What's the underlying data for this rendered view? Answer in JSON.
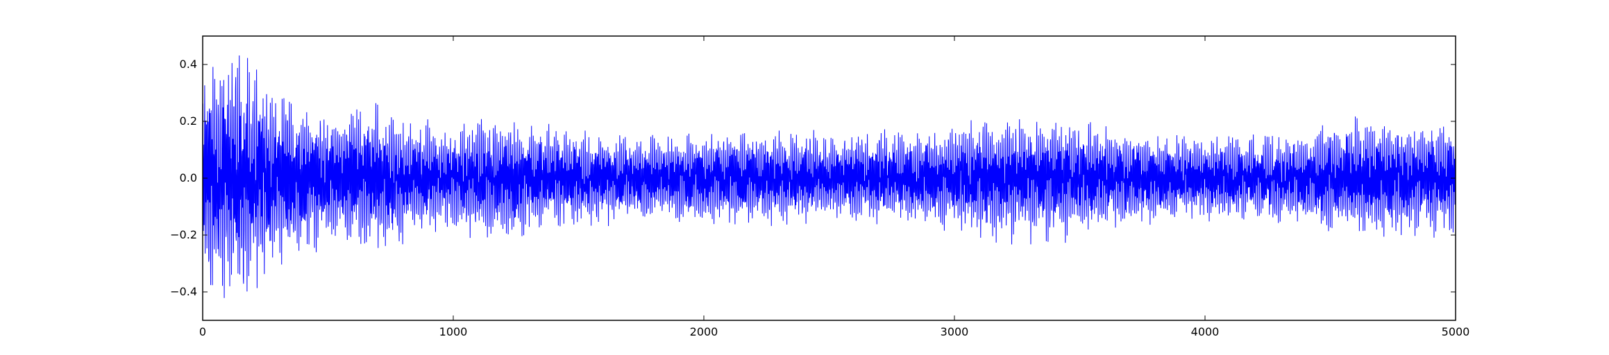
{
  "chart_data": {
    "type": "line",
    "title": "",
    "xlabel": "",
    "ylabel": "",
    "xlim": [
      0,
      5000
    ],
    "ylim": [
      -0.5,
      0.5
    ],
    "x_ticks": [
      0,
      1000,
      2000,
      3000,
      4000,
      5000
    ],
    "y_ticks": [
      -0.4,
      -0.2,
      0.0,
      0.2,
      0.4
    ],
    "x_tick_labels": [
      "0",
      "1000",
      "2000",
      "3000",
      "4000",
      "5000"
    ],
    "y_tick_labels": [
      "−0.4",
      "−0.2",
      "0.0",
      "0.2",
      "0.4"
    ],
    "grid": false,
    "legend": "none",
    "series": [
      {
        "color": "#0000ff",
        "sample_count": 5000,
        "envelope": [
          {
            "x": 0,
            "amplitude": 0.36
          },
          {
            "x": 50,
            "amplitude": 0.4
          },
          {
            "x": 170,
            "amplitude": 0.42
          },
          {
            "x": 300,
            "amplitude": 0.28
          },
          {
            "x": 500,
            "amplitude": 0.22
          },
          {
            "x": 700,
            "amplitude": 0.25
          },
          {
            "x": 900,
            "amplitude": 0.18
          },
          {
            "x": 1200,
            "amplitude": 0.2
          },
          {
            "x": 1500,
            "amplitude": 0.16
          },
          {
            "x": 1800,
            "amplitude": 0.14
          },
          {
            "x": 2000,
            "amplitude": 0.16
          },
          {
            "x": 2500,
            "amplitude": 0.15
          },
          {
            "x": 3000,
            "amplitude": 0.17
          },
          {
            "x": 3100,
            "amplitude": 0.21
          },
          {
            "x": 3400,
            "amplitude": 0.21
          },
          {
            "x": 3800,
            "amplitude": 0.15
          },
          {
            "x": 4000,
            "amplitude": 0.14
          },
          {
            "x": 4400,
            "amplitude": 0.16
          },
          {
            "x": 4500,
            "amplitude": 0.2
          },
          {
            "x": 5000,
            "amplitude": 0.19
          }
        ]
      }
    ]
  }
}
